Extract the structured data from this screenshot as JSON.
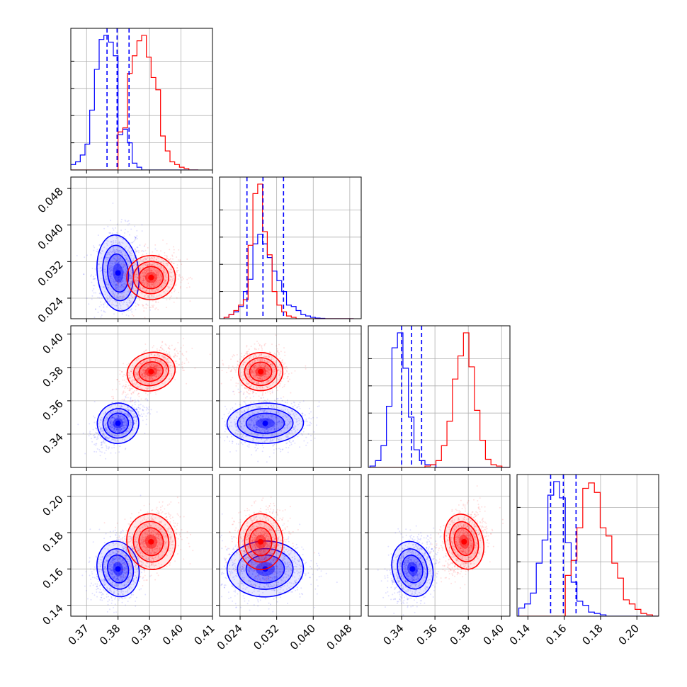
{
  "chart_data": {
    "type": "corner",
    "grid": true,
    "series": [
      {
        "color": "#0000ff",
        "means": [
          0.38,
          0.0295,
          0.3465,
          0.16
        ],
        "sds": [
          0.003,
          0.0038,
          0.0055,
          0.007
        ],
        "quantile_lines": [
          [
            0.3765,
            0.3797,
            0.3835
          ],
          [
            0.0255,
            0.029,
            0.0335
          ],
          [
            0.34,
            0.346,
            0.352
          ],
          [
            0.1525,
            0.1595,
            0.1665
          ]
        ]
      },
      {
        "color": "#ff0000",
        "means": [
          0.3905,
          0.0285,
          0.3775,
          0.175
        ],
        "sds": [
          0.0035,
          0.0022,
          0.0052,
          0.007
        ]
      }
    ],
    "histograms": [
      {
        "bin_start": 0.365,
        "bin_width": 0.0015,
        "blue": [
          0.04,
          0.06,
          0.11,
          0.19,
          0.44,
          0.74,
          0.96,
          0.99,
          0.94,
          0.84,
          0.26,
          0.3,
          0.2,
          0.05,
          0.02,
          0,
          0,
          0,
          0,
          0,
          0,
          0,
          0,
          0,
          0,
          0,
          0
        ],
        "red": [
          0,
          0,
          0,
          0,
          0,
          0,
          0,
          0,
          0,
          0,
          0.28,
          0.31,
          0.71,
          0.84,
          0.95,
          0.99,
          0.83,
          0.68,
          0.59,
          0.25,
          0.14,
          0.06,
          0.04,
          0.02,
          0.01,
          0,
          0
        ]
      },
      {
        "bin_start": 0.0205,
        "bin_width": 0.00105,
        "blue": [
          0.01,
          0.03,
          0.05,
          0.09,
          0.2,
          0.29,
          0.55,
          0.62,
          0.55,
          0.45,
          0.35,
          0.28,
          0.2,
          0.1,
          0.09,
          0.06,
          0.03,
          0.02,
          0.01,
          0.005,
          0.003,
          0,
          0,
          0,
          0,
          0,
          0
        ],
        "red": [
          0.01,
          0.03,
          0.06,
          0.1,
          0.14,
          0.54,
          0.92,
          0.99,
          0.64,
          0.47,
          0.2,
          0.1,
          0.05,
          0.02,
          0.01,
          0,
          0,
          0,
          0,
          0,
          0,
          0,
          0,
          0,
          0,
          0,
          0
        ]
      },
      {
        "bin_start": 0.321,
        "bin_width": 0.0033,
        "blue": [
          0.01,
          0.05,
          0.16,
          0.45,
          0.88,
          0.99,
          0.73,
          0.37,
          0.13,
          0.05,
          0.02,
          0.02,
          0,
          0,
          0,
          0,
          0,
          0,
          0,
          0,
          0,
          0,
          0,
          0,
          0,
          0
        ],
        "red": [
          0,
          0,
          0,
          0,
          0,
          0,
          0,
          0,
          0,
          0,
          0.01,
          0.02,
          0.05,
          0.16,
          0.34,
          0.65,
          0.82,
          0.99,
          0.74,
          0.42,
          0.2,
          0.06,
          0.02,
          0.01,
          0,
          0
        ]
      },
      {
        "bin_start": 0.135,
        "bin_width": 0.0032,
        "blue": [
          0.06,
          0.09,
          0.17,
          0.39,
          0.56,
          0.89,
          0.99,
          0.87,
          0.54,
          0.25,
          0.11,
          0.08,
          0.03,
          0.02,
          0.01,
          0,
          0,
          0,
          0,
          0,
          0,
          0,
          0,
          0,
          0,
          0
        ],
        "red": [
          0,
          0,
          0,
          0,
          0,
          0,
          0,
          0,
          0.3,
          0.41,
          0.65,
          0.94,
          0.98,
          0.91,
          0.65,
          0.59,
          0.39,
          0.28,
          0.12,
          0.09,
          0.05,
          0.02,
          0.01,
          0,
          0,
          0
        ]
      }
    ],
    "axes": [
      {
        "range": [
          0.365,
          0.41
        ],
        "ticks": [
          0.37,
          0.38,
          0.39,
          0.4,
          0.41
        ],
        "tick_labels": [
          "0.37",
          "0.38",
          "0.39",
          "0.40",
          "0.41"
        ]
      },
      {
        "range": [
          0.0195,
          0.0505
        ],
        "ticks": [
          0.024,
          0.032,
          0.04,
          0.048
        ],
        "tick_labels": [
          "0.024",
          "0.032",
          "0.040",
          "0.048"
        ]
      },
      {
        "range": [
          0.32,
          0.405
        ],
        "ticks": [
          0.34,
          0.36,
          0.38,
          0.4
        ],
        "tick_labels": [
          "0.34",
          "0.36",
          "0.38",
          "0.40"
        ]
      },
      {
        "range": [
          0.134,
          0.212
        ],
        "ticks": [
          0.14,
          0.16,
          0.18,
          0.2
        ],
        "tick_labels": [
          "0.14",
          "0.16",
          "0.18",
          "0.20"
        ]
      }
    ]
  }
}
